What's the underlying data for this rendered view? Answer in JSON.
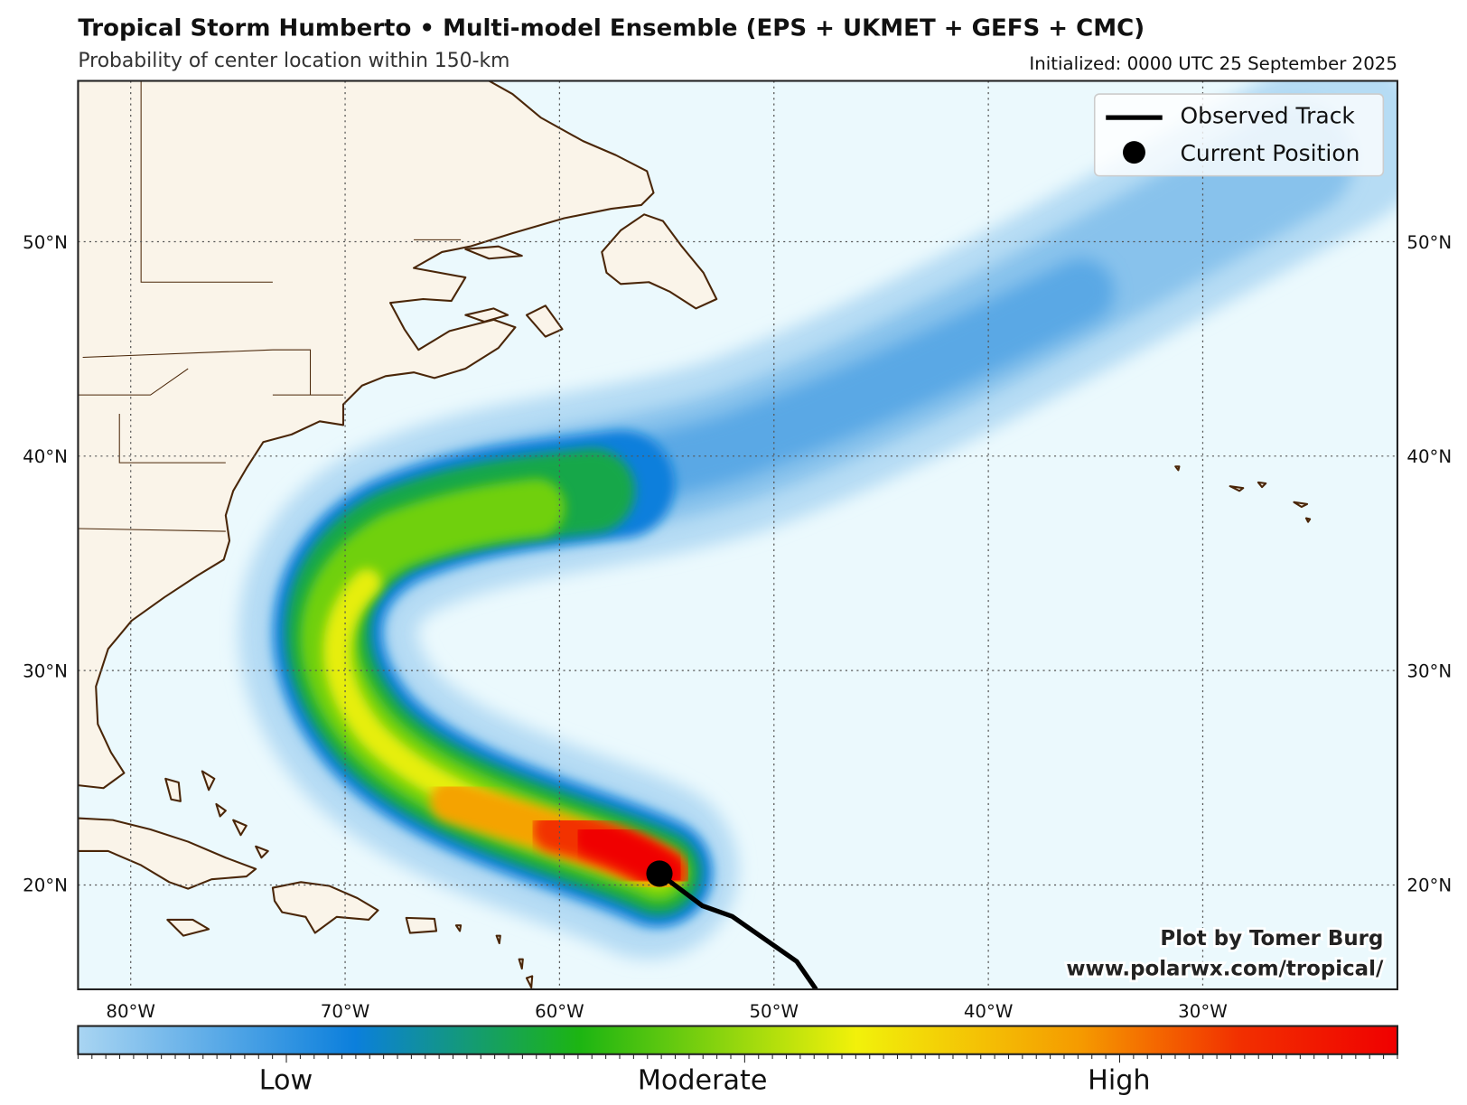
{
  "header": {
    "title": "Tropical Storm Humberto • Multi-model Ensemble (EPS + UKMET + GEFS + CMC)",
    "subtitle": "Probability of center location within 150-km",
    "initialized": "Initialized: 0000 UTC 25 September 2025"
  },
  "legend": {
    "observed_track": "Observed Track",
    "current_position": "Current Position"
  },
  "credit": {
    "line1": "Plot by Tomer Burg",
    "line2": "www.polarwx.com/tropical/"
  },
  "axes": {
    "lat_labels": [
      "50°N",
      "40°N",
      "30°N",
      "20°N"
    ],
    "lon_labels": [
      "80°W",
      "70°W",
      "60°W",
      "50°W",
      "40°W",
      "30°W"
    ]
  },
  "colorbar": {
    "labels": [
      "Low",
      "Moderate",
      "High"
    ],
    "colors": [
      "#a9d5f2",
      "#0b7fdc",
      "#1cb512",
      "#f2f10a",
      "#f59a00",
      "#f23000",
      "#f00000"
    ]
  },
  "map": {
    "extent_lon": [
      -82.5,
      -21.0
    ],
    "extent_lat": [
      15.1,
      57.5
    ],
    "land_color": "#faf4e9",
    "ocean_color": "#ebf9fd",
    "coast_color": "#4a2608"
  },
  "storm": {
    "current_position": {
      "lon": -55.4,
      "lat": 20.5
    },
    "observed_track": [
      {
        "lon": -55.4,
        "lat": 20.5
      },
      {
        "lon": -53.4,
        "lat": 19.0
      },
      {
        "lon": -52.0,
        "lat": 18.5
      },
      {
        "lon": -49.0,
        "lat": 16.4
      },
      {
        "lon": -48.1,
        "lat": 15.1
      }
    ]
  }
}
